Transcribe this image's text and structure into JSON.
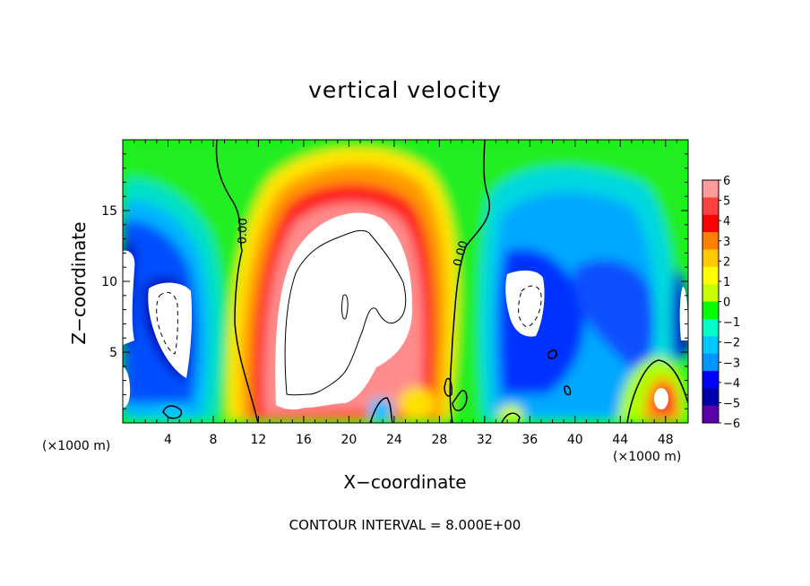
{
  "chart_data": {
    "type": "heatmap",
    "title": "vertical velocity",
    "xlabel": "X−coordinate",
    "ylabel": "Z−coordinate",
    "x_unit": "(×1000 m)",
    "xlim": [
      0,
      50
    ],
    "ylim": [
      0,
      20
    ],
    "x_ticks": [
      4,
      8,
      12,
      16,
      20,
      24,
      28,
      32,
      36,
      40,
      44,
      48
    ],
    "y_ticks": [
      5,
      10,
      15
    ],
    "contour_interval_label": "CONTOUR INTERVAL = 8.000E+00",
    "contour_labels": [
      "0.00",
      "0.00"
    ],
    "colorbar": {
      "levels": [
        "6",
        "5",
        "4",
        "3",
        "2",
        "1",
        "0",
        "−1",
        "−2",
        "−3",
        "−4",
        "−5",
        "−6"
      ],
      "colors": [
        "#ff9b9b",
        "#ff4040",
        "#ff0000",
        "#ff7f00",
        "#ffc800",
        "#ffff00",
        "#c8ff00",
        "#00ff00",
        "#00ffc8",
        "#00c8ff",
        "#0096ff",
        "#0000ff",
        "#0000aa",
        "#5a00aa"
      ]
    },
    "field_features": [
      {
        "kind": "updraft",
        "x_center": 19.5,
        "z_center": 9,
        "x_range": [
          12,
          28
        ],
        "z_range": [
          1,
          16
        ],
        "max": 8
      },
      {
        "kind": "downdraft",
        "x_center": 5,
        "z_center": 8,
        "x_range": [
          0,
          10
        ],
        "z_range": [
          1,
          13
        ],
        "min": -8
      },
      {
        "kind": "downdraft",
        "x_center": 36,
        "z_center": 9,
        "x_range": [
          30,
          47
        ],
        "z_range": [
          1,
          18
        ],
        "min": -8
      },
      {
        "kind": "updraft",
        "x_center": 47,
        "z_center": 2,
        "x_range": [
          45,
          50
        ],
        "z_range": [
          0,
          4
        ],
        "max": 6
      }
    ]
  }
}
